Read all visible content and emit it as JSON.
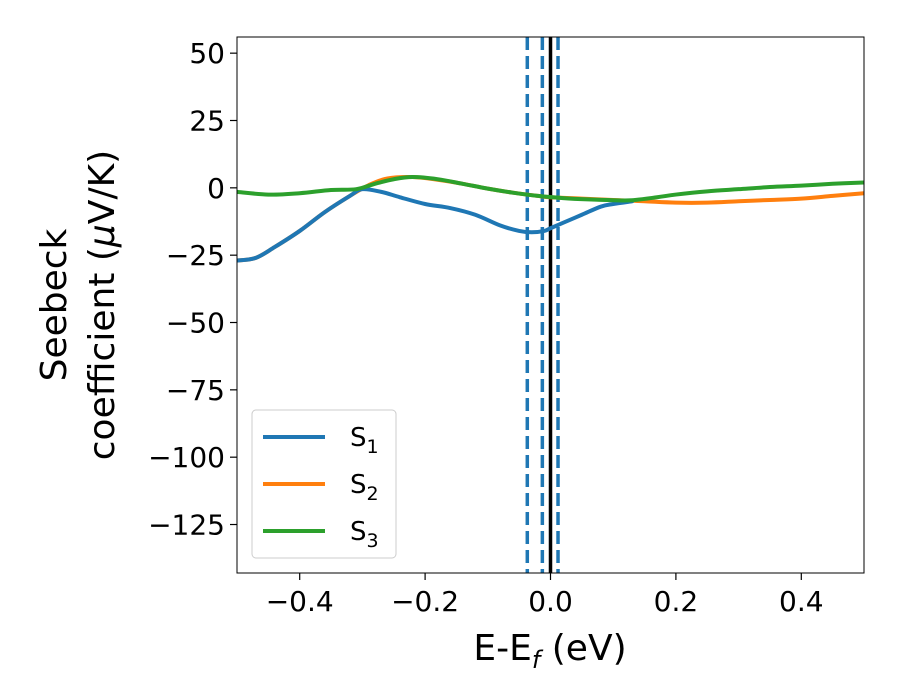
{
  "chart_data": {
    "type": "line",
    "title": "",
    "xlabel": {
      "main": "E-E",
      "sub": "f",
      "suffix": " (eV)"
    },
    "ylabel": {
      "line1": "Seebeck",
      "line2_prefix": "coefficient  (",
      "mu": "μ",
      "line2_suffix": "V/K)"
    },
    "xlim": [
      -0.5,
      0.5
    ],
    "ylim": [
      -143,
      56
    ],
    "xticks": [
      -0.4,
      -0.2,
      0.0,
      0.2,
      0.4
    ],
    "xtick_labels": [
      "−0.4",
      "−0.2",
      "0.0",
      "0.2",
      "0.4"
    ],
    "yticks": [
      50,
      25,
      0,
      -25,
      -50,
      -75,
      -100,
      -125
    ],
    "ytick_labels": [
      "50",
      "25",
      "0",
      "−25",
      "−50",
      "−75",
      "−100",
      "−125"
    ],
    "grid": false,
    "legend_position": "lower-left",
    "series": [
      {
        "name": "S",
        "sub": "1",
        "color": "#1f77b4",
        "x": [
          -0.5,
          -0.47,
          -0.44,
          -0.4,
          -0.36,
          -0.32,
          -0.3,
          -0.27,
          -0.24,
          -0.2,
          -0.16,
          -0.12,
          -0.08,
          -0.05,
          -0.03,
          -0.01,
          0.0,
          0.02,
          0.05,
          0.08,
          0.1,
          0.13
        ],
        "y": [
          -27,
          -26,
          -22,
          -16,
          -9,
          -3,
          -0.5,
          -1.5,
          -3.5,
          -6,
          -7.5,
          -10,
          -14,
          -16,
          -16.5,
          -16,
          -15,
          -13,
          -10,
          -7,
          -6,
          -5
        ]
      },
      {
        "name": "S",
        "sub": "2",
        "color": "#ff7f0e",
        "x": [
          -0.5,
          -0.47,
          -0.44,
          -0.4,
          -0.36,
          -0.32,
          -0.29,
          -0.26,
          -0.22,
          -0.18,
          -0.14,
          -0.1,
          -0.06,
          -0.02,
          0.0,
          0.05,
          0.1,
          0.15,
          0.2,
          0.25,
          0.3,
          0.35,
          0.4,
          0.45,
          0.5
        ],
        "y": [
          -27,
          -26,
          -22,
          -16,
          -9,
          -3,
          1,
          3.5,
          4,
          3,
          1.5,
          -0.3,
          -1.8,
          -3,
          -3.5,
          -4,
          -4.5,
          -5,
          -5.5,
          -5.5,
          -5,
          -4.5,
          -4,
          -3,
          -2
        ]
      },
      {
        "name": "S",
        "sub": "3",
        "color": "#2ca02c",
        "x": [
          -0.5,
          -0.45,
          -0.4,
          -0.35,
          -0.31,
          -0.28,
          -0.25,
          -0.22,
          -0.18,
          -0.14,
          -0.1,
          -0.06,
          -0.02,
          0.02,
          0.06,
          0.1,
          0.13,
          0.17,
          0.2,
          0.25,
          0.3,
          0.35,
          0.4,
          0.45,
          0.5
        ],
        "y": [
          -1.5,
          -2.5,
          -2,
          -0.8,
          -0.5,
          1.5,
          3.2,
          4,
          3.2,
          1.5,
          -0.3,
          -1.8,
          -3,
          -3.8,
          -4.3,
          -4.6,
          -4.6,
          -3.5,
          -2.5,
          -1.3,
          -0.5,
          0.3,
          0.8,
          1.5,
          2
        ]
      }
    ],
    "vlines": [
      {
        "x": -0.037,
        "color": "#1f77b4",
        "style": "dashed"
      },
      {
        "x": -0.013,
        "color": "#1f77b4",
        "style": "dashed"
      },
      {
        "x": 0.012,
        "color": "#1f77b4",
        "style": "dashed"
      },
      {
        "x": 0.0,
        "color": "#000000",
        "style": "solid"
      }
    ]
  }
}
